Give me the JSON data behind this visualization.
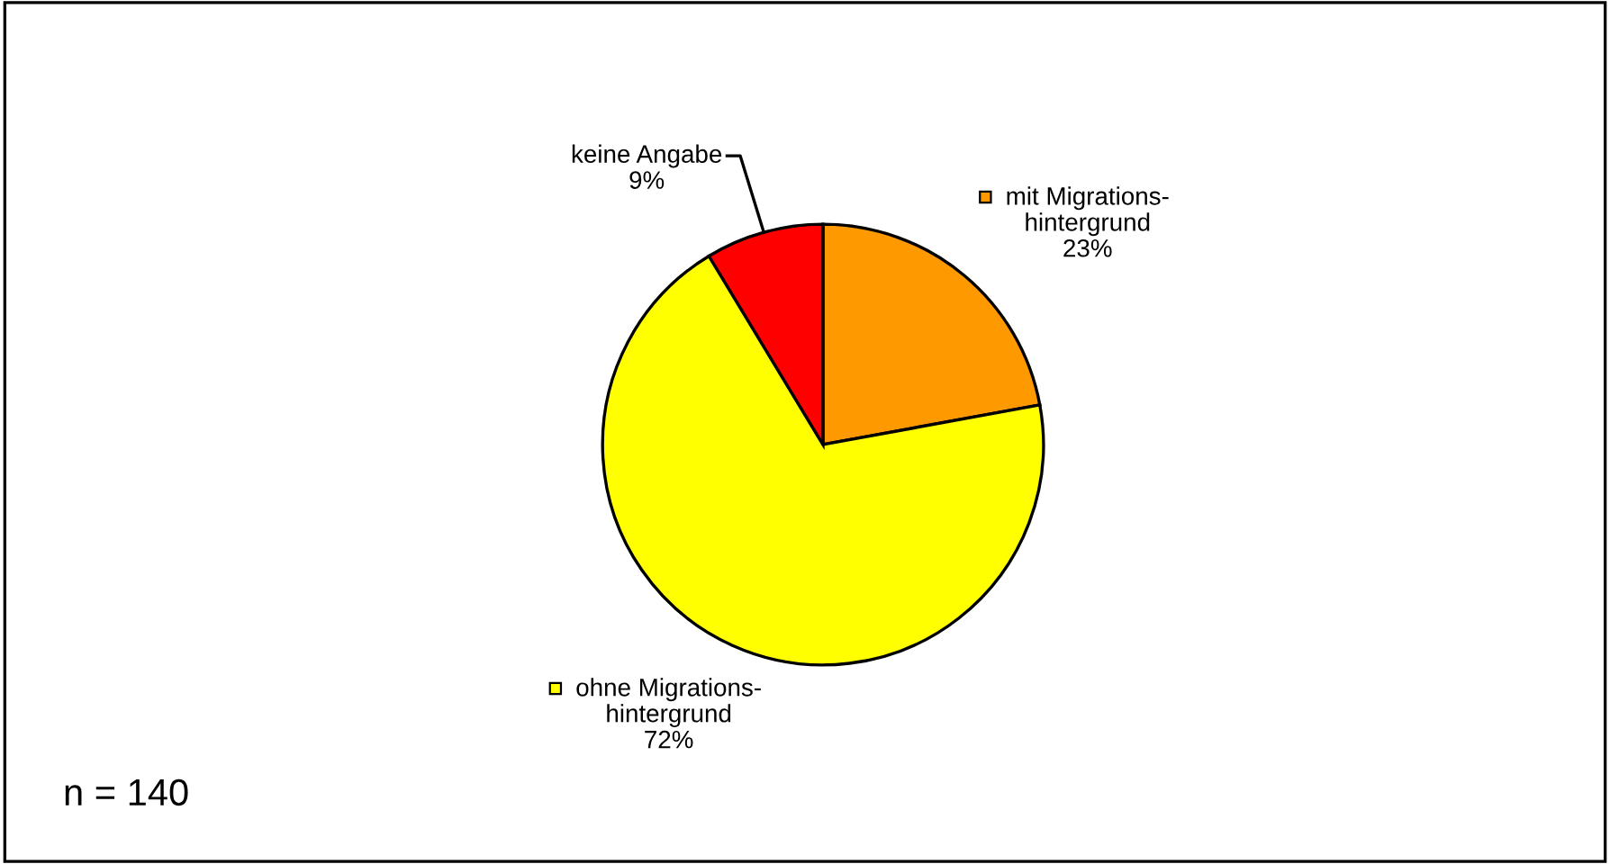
{
  "chart_data": {
    "type": "pie",
    "categories": [
      "mit Migrations-\nhintergrund",
      "ohne Migrations-\nhintergrund",
      "keine Angabe"
    ],
    "values": [
      23,
      72,
      9
    ],
    "colors": [
      "#ff9900",
      "#ffff00",
      "#ff0000"
    ],
    "value_labels": [
      "23%",
      "72%",
      "9%"
    ],
    "annotations": [
      "n = 140"
    ],
    "legend": "right"
  }
}
